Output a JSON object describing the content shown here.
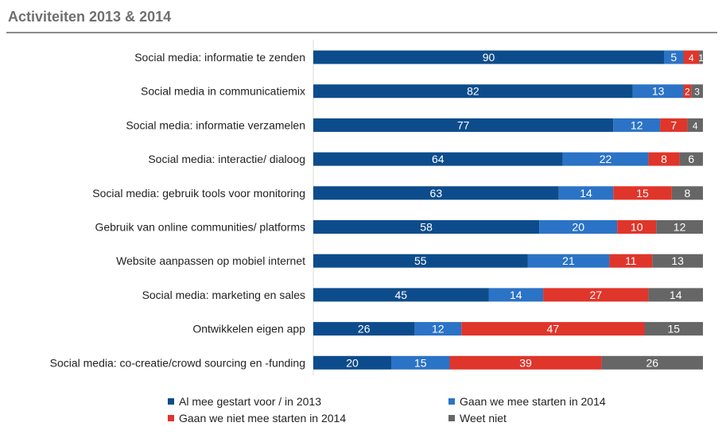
{
  "header": {
    "title": "Activiteiten 2013 & 2014"
  },
  "colors": {
    "series": [
      "#0d4c8c",
      "#2b73c6",
      "#e0352b",
      "#666666"
    ],
    "grid": "#d9d9d9",
    "rule": "#8c8c8c"
  },
  "chart_data": {
    "type": "bar",
    "orientation": "horizontal",
    "stacked": true,
    "title": "Activiteiten 2013 & 2014",
    "xlim": [
      0,
      100
    ],
    "grid": false,
    "legend_position": "bottom",
    "categories": [
      "Social media: informatie te zenden",
      "Social media in communicatiemix",
      "Social media: informatie verzamelen",
      "Social media: interactie/ dialoog",
      "Social media: gebruik tools voor monitoring",
      "Gebruik van online communities/ platforms",
      "Website aanpassen op mobiel internet",
      "Social media:  marketing en sales",
      "Ontwikkelen eigen app",
      "Social media: co-creatie/crowd sourcing en -funding"
    ],
    "series": [
      {
        "name": "Al mee gestart voor / in 2013",
        "values": [
          90,
          82,
          77,
          64,
          63,
          58,
          55,
          45,
          26,
          20
        ]
      },
      {
        "name": "Gaan we mee starten in 2014",
        "values": [
          5,
          13,
          12,
          22,
          14,
          20,
          21,
          14,
          12,
          15
        ]
      },
      {
        "name": "Gaan we niet mee starten in 2014",
        "values": [
          4,
          2,
          7,
          8,
          15,
          10,
          11,
          27,
          47,
          39
        ]
      },
      {
        "name": "Weet niet",
        "values": [
          1,
          3,
          4,
          6,
          8,
          12,
          13,
          14,
          15,
          26
        ]
      }
    ]
  }
}
